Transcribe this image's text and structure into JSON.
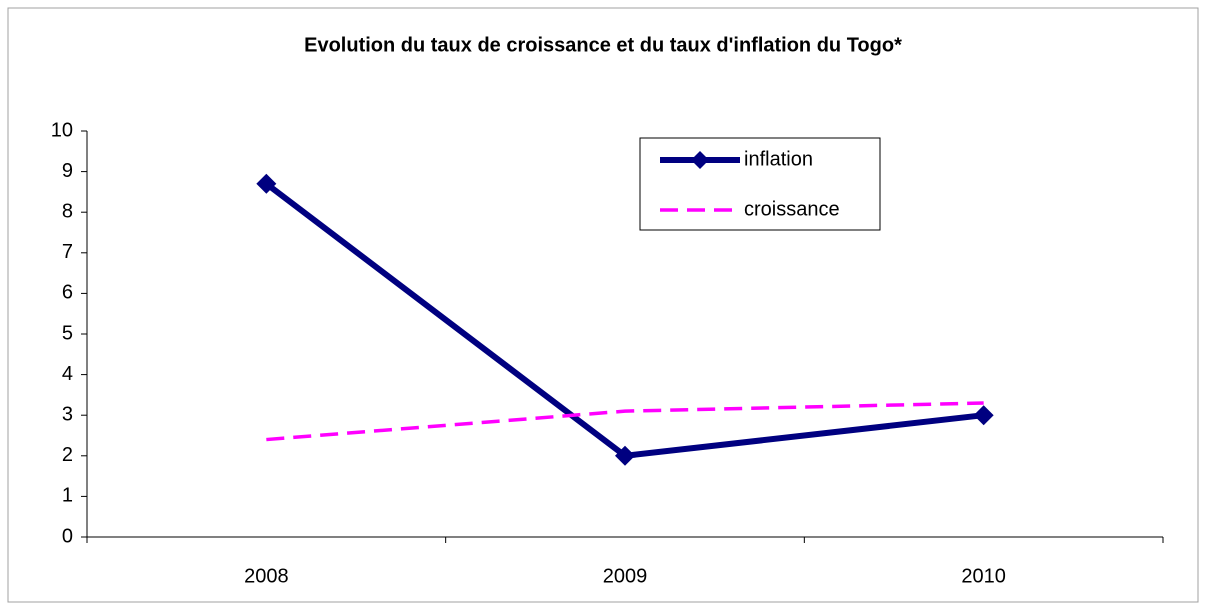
{
  "chart_data": {
    "type": "line",
    "title": "Evolution du taux de croissance et du taux d'inflation du Togo*",
    "categories": [
      "2008",
      "2009",
      "2010"
    ],
    "series": [
      {
        "name": "inflation",
        "color": "#000080",
        "values": [
          8.7,
          2.0,
          3.0
        ]
      },
      {
        "name": "croissance",
        "color": "#ff00ff",
        "values": [
          2.4,
          3.1,
          3.3
        ]
      }
    ],
    "ylim": [
      0,
      10
    ],
    "yticks": [
      0,
      1,
      2,
      3,
      4,
      5,
      6,
      7,
      8,
      9,
      10
    ],
    "grid": false
  }
}
